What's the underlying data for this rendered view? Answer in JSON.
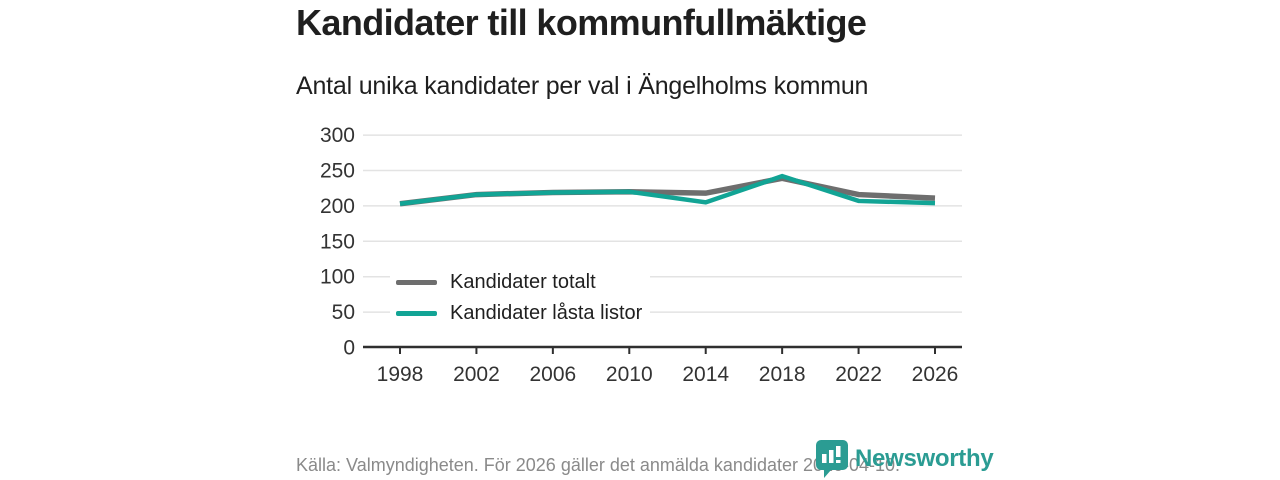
{
  "header": {
    "title": "Kandidater till kommunfullmäktige",
    "subtitle": "Antal unika kandidater per val i Ängelholms kommun"
  },
  "chart_data": {
    "type": "line",
    "x": [
      1998,
      2002,
      2006,
      2010,
      2014,
      2018,
      2022,
      2026
    ],
    "series": [
      {
        "name": "Kandidater totalt",
        "color": "#6e6e6e",
        "values": [
          203,
          216,
          219,
          220,
          218,
          239,
          216,
          211
        ]
      },
      {
        "name": "Kandidater låsta listor",
        "color": "#12a495",
        "values": [
          203,
          216,
          219,
          220,
          205,
          242,
          207,
          204
        ]
      }
    ],
    "ylim": [
      0,
      300
    ],
    "yticks": [
      0,
      50,
      100,
      150,
      200,
      250,
      300
    ],
    "grid": true,
    "legend_position": "inside-left",
    "xlabel": "",
    "ylabel": ""
  },
  "footer": {
    "source": "Källa: Valmyndigheten. För 2026 gäller det anmälda kandidater 2026-04-10.",
    "brand": "Newsworthy"
  },
  "colors": {
    "series_total": "#6e6e6e",
    "series_locked": "#12a495",
    "grid": "#e3e3e3",
    "axis": "#2f2f2f",
    "title_text": "#1f1f1f",
    "footer_text": "#8a8a8a",
    "brand_teal": "#2b9c93",
    "background": "#ffffff"
  }
}
